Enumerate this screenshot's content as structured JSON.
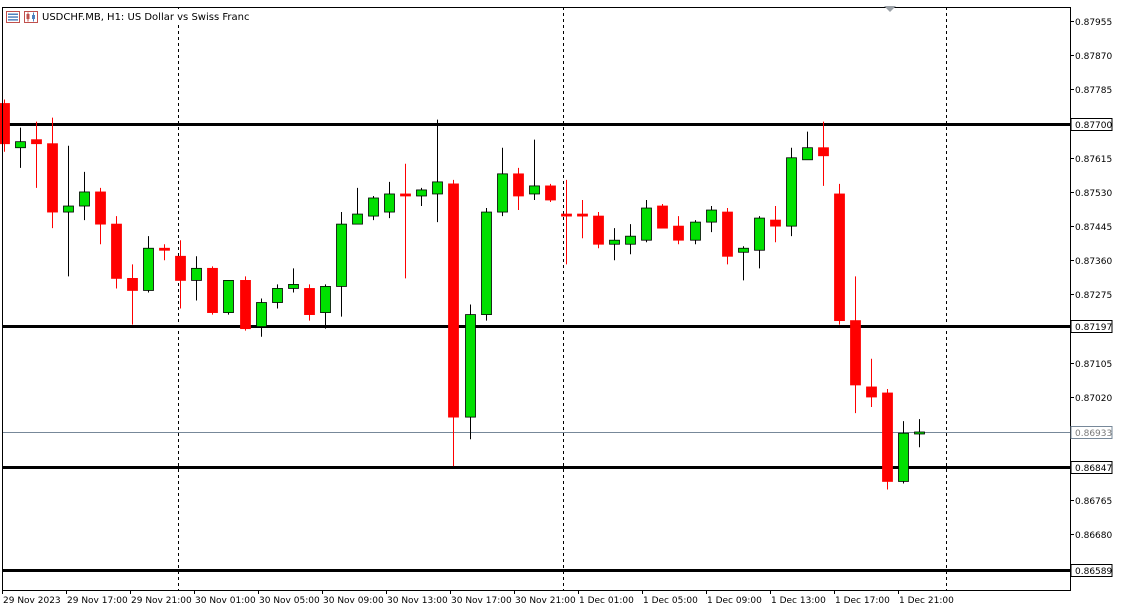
{
  "window": {
    "symbol": "USDCHF.MB",
    "timeframe": "H1:",
    "description": "US Dollar vs Swiss Franc",
    "menu_icon": "list-icon",
    "chart_icon": "candlestick-chart-icon"
  },
  "colors": {
    "bull": "#00e000",
    "bear": "#ff0000",
    "candle_outline": "#000000",
    "grid": "#000000",
    "background": "#ffffff",
    "bid_line": "#778899",
    "price_box_bg": "#ffffff",
    "price_box_bid_text": "#7a7a7a"
  },
  "chart_data": {
    "type": "candlestick",
    "symbol": "USDCHF.MB",
    "timeframe": "H1",
    "ylim": [
      0.8654,
      0.8799
    ],
    "y_ticks": [
      "0.87955",
      "0.87870",
      "0.87785",
      "0.87615",
      "0.87530",
      "0.87445",
      "0.87360",
      "0.87275",
      "0.87105",
      "0.87020",
      "0.86765",
      "0.86680"
    ],
    "x_ticks": [
      "29 Nov 2023",
      "29 Nov 17:00",
      "29 Nov 21:00",
      "30 Nov 01:00",
      "30 Nov 05:00",
      "30 Nov 09:00",
      "30 Nov 13:00",
      "30 Nov 17:00",
      "30 Nov 21:00",
      "1 Dec 01:00",
      "1 Dec 05:00",
      "1 Dec 09:00",
      "1 Dec 13:00",
      "1 Dec 17:00",
      "1 Dec 21:00"
    ],
    "grid": "vertical dashed separators at day boundaries",
    "horizontal_levels": [
      {
        "label": "0.87700",
        "value": 0.877
      },
      {
        "label": "0.87197",
        "value": 0.87197
      },
      {
        "label": "0.86847",
        "value": 0.86847
      },
      {
        "label": "0.86589",
        "value": 0.86589
      }
    ],
    "bid_line": {
      "label": "0.86933",
      "value": 0.86933
    },
    "candles": [
      {
        "o": 0.8775,
        "h": 0.8776,
        "l": 0.8763,
        "c": 0.8765
      },
      {
        "o": 0.8764,
        "h": 0.8769,
        "l": 0.8759,
        "c": 0.87655
      },
      {
        "o": 0.8766,
        "h": 0.87705,
        "l": 0.8754,
        "c": 0.8765
      },
      {
        "o": 0.8765,
        "h": 0.87715,
        "l": 0.8744,
        "c": 0.8748
      },
      {
        "o": 0.8748,
        "h": 0.87645,
        "l": 0.8732,
        "c": 0.87495
      },
      {
        "o": 0.87495,
        "h": 0.8758,
        "l": 0.8746,
        "c": 0.8753
      },
      {
        "o": 0.8753,
        "h": 0.8754,
        "l": 0.874,
        "c": 0.8745
      },
      {
        "o": 0.8745,
        "h": 0.8747,
        "l": 0.8729,
        "c": 0.87315
      },
      {
        "o": 0.87315,
        "h": 0.8735,
        "l": 0.872,
        "c": 0.87285
      },
      {
        "o": 0.87285,
        "h": 0.8742,
        "l": 0.8728,
        "c": 0.8739
      },
      {
        "o": 0.8739,
        "h": 0.874,
        "l": 0.8736,
        "c": 0.87385
      },
      {
        "o": 0.8737,
        "h": 0.8741,
        "l": 0.8724,
        "c": 0.8731
      },
      {
        "o": 0.8731,
        "h": 0.8737,
        "l": 0.8726,
        "c": 0.8734
      },
      {
        "o": 0.8734,
        "h": 0.87345,
        "l": 0.87225,
        "c": 0.8723
      },
      {
        "o": 0.8723,
        "h": 0.8731,
        "l": 0.87225,
        "c": 0.8731
      },
      {
        "o": 0.8731,
        "h": 0.8732,
        "l": 0.87185,
        "c": 0.8719
      },
      {
        "o": 0.87195,
        "h": 0.87265,
        "l": 0.8717,
        "c": 0.87255
      },
      {
        "o": 0.87255,
        "h": 0.873,
        "l": 0.8724,
        "c": 0.8729
      },
      {
        "o": 0.8729,
        "h": 0.8734,
        "l": 0.8728,
        "c": 0.873
      },
      {
        "o": 0.8729,
        "h": 0.873,
        "l": 0.8721,
        "c": 0.87225
      },
      {
        "o": 0.8723,
        "h": 0.873,
        "l": 0.8719,
        "c": 0.87295
      },
      {
        "o": 0.87295,
        "h": 0.8748,
        "l": 0.8722,
        "c": 0.8745
      },
      {
        "o": 0.8745,
        "h": 0.8754,
        "l": 0.8745,
        "c": 0.87475
      },
      {
        "o": 0.8747,
        "h": 0.8752,
        "l": 0.8746,
        "c": 0.87515
      },
      {
        "o": 0.8748,
        "h": 0.87555,
        "l": 0.87465,
        "c": 0.87525
      },
      {
        "o": 0.87525,
        "h": 0.876,
        "l": 0.87315,
        "c": 0.8752
      },
      {
        "o": 0.8752,
        "h": 0.8754,
        "l": 0.87495,
        "c": 0.87535
      },
      {
        "o": 0.87525,
        "h": 0.8771,
        "l": 0.87455,
        "c": 0.87555
      },
      {
        "o": 0.8755,
        "h": 0.8756,
        "l": 0.86848,
        "c": 0.8697
      },
      {
        "o": 0.8697,
        "h": 0.8725,
        "l": 0.86915,
        "c": 0.87225
      },
      {
        "o": 0.87225,
        "h": 0.8749,
        "l": 0.8721,
        "c": 0.8748
      },
      {
        "o": 0.8748,
        "h": 0.8764,
        "l": 0.8747,
        "c": 0.87575
      },
      {
        "o": 0.87575,
        "h": 0.8759,
        "l": 0.87485,
        "c": 0.8752
      },
      {
        "o": 0.87525,
        "h": 0.8766,
        "l": 0.8751,
        "c": 0.87545
      },
      {
        "o": 0.87545,
        "h": 0.8755,
        "l": 0.87505,
        "c": 0.8751
      },
      {
        "o": 0.87475,
        "h": 0.8756,
        "l": 0.8735,
        "c": 0.8747
      },
      {
        "o": 0.87475,
        "h": 0.8751,
        "l": 0.87415,
        "c": 0.8747
      },
      {
        "o": 0.8747,
        "h": 0.8748,
        "l": 0.8739,
        "c": 0.874
      },
      {
        "o": 0.874,
        "h": 0.8744,
        "l": 0.8736,
        "c": 0.8741
      },
      {
        "o": 0.874,
        "h": 0.8745,
        "l": 0.87375,
        "c": 0.8742
      },
      {
        "o": 0.8741,
        "h": 0.8751,
        "l": 0.87405,
        "c": 0.8749
      },
      {
        "o": 0.87495,
        "h": 0.875,
        "l": 0.8744,
        "c": 0.8744
      },
      {
        "o": 0.87445,
        "h": 0.8747,
        "l": 0.874,
        "c": 0.8741
      },
      {
        "o": 0.8741,
        "h": 0.8746,
        "l": 0.874,
        "c": 0.87455
      },
      {
        "o": 0.87455,
        "h": 0.87495,
        "l": 0.8743,
        "c": 0.87485
      },
      {
        "o": 0.8748,
        "h": 0.8749,
        "l": 0.8735,
        "c": 0.8737
      },
      {
        "o": 0.8738,
        "h": 0.87395,
        "l": 0.8731,
        "c": 0.8739
      },
      {
        "o": 0.87385,
        "h": 0.8747,
        "l": 0.8734,
        "c": 0.87465
      },
      {
        "o": 0.8746,
        "h": 0.87495,
        "l": 0.87405,
        "c": 0.87445
      },
      {
        "o": 0.87445,
        "h": 0.8764,
        "l": 0.8742,
        "c": 0.87615
      },
      {
        "o": 0.8761,
        "h": 0.8768,
        "l": 0.8761,
        "c": 0.8764
      },
      {
        "o": 0.8764,
        "h": 0.87705,
        "l": 0.87545,
        "c": 0.8762
      },
      {
        "o": 0.87525,
        "h": 0.8755,
        "l": 0.872,
        "c": 0.8721
      },
      {
        "o": 0.8721,
        "h": 0.8732,
        "l": 0.8698,
        "c": 0.8705
      },
      {
        "o": 0.87045,
        "h": 0.87115,
        "l": 0.86995,
        "c": 0.8702
      },
      {
        "o": 0.8703,
        "h": 0.8704,
        "l": 0.8679,
        "c": 0.8681
      },
      {
        "o": 0.8681,
        "h": 0.8696,
        "l": 0.86805,
        "c": 0.8693
      },
      {
        "o": 0.8693,
        "h": 0.86965,
        "l": 0.86895,
        "c": 0.86933
      }
    ]
  }
}
